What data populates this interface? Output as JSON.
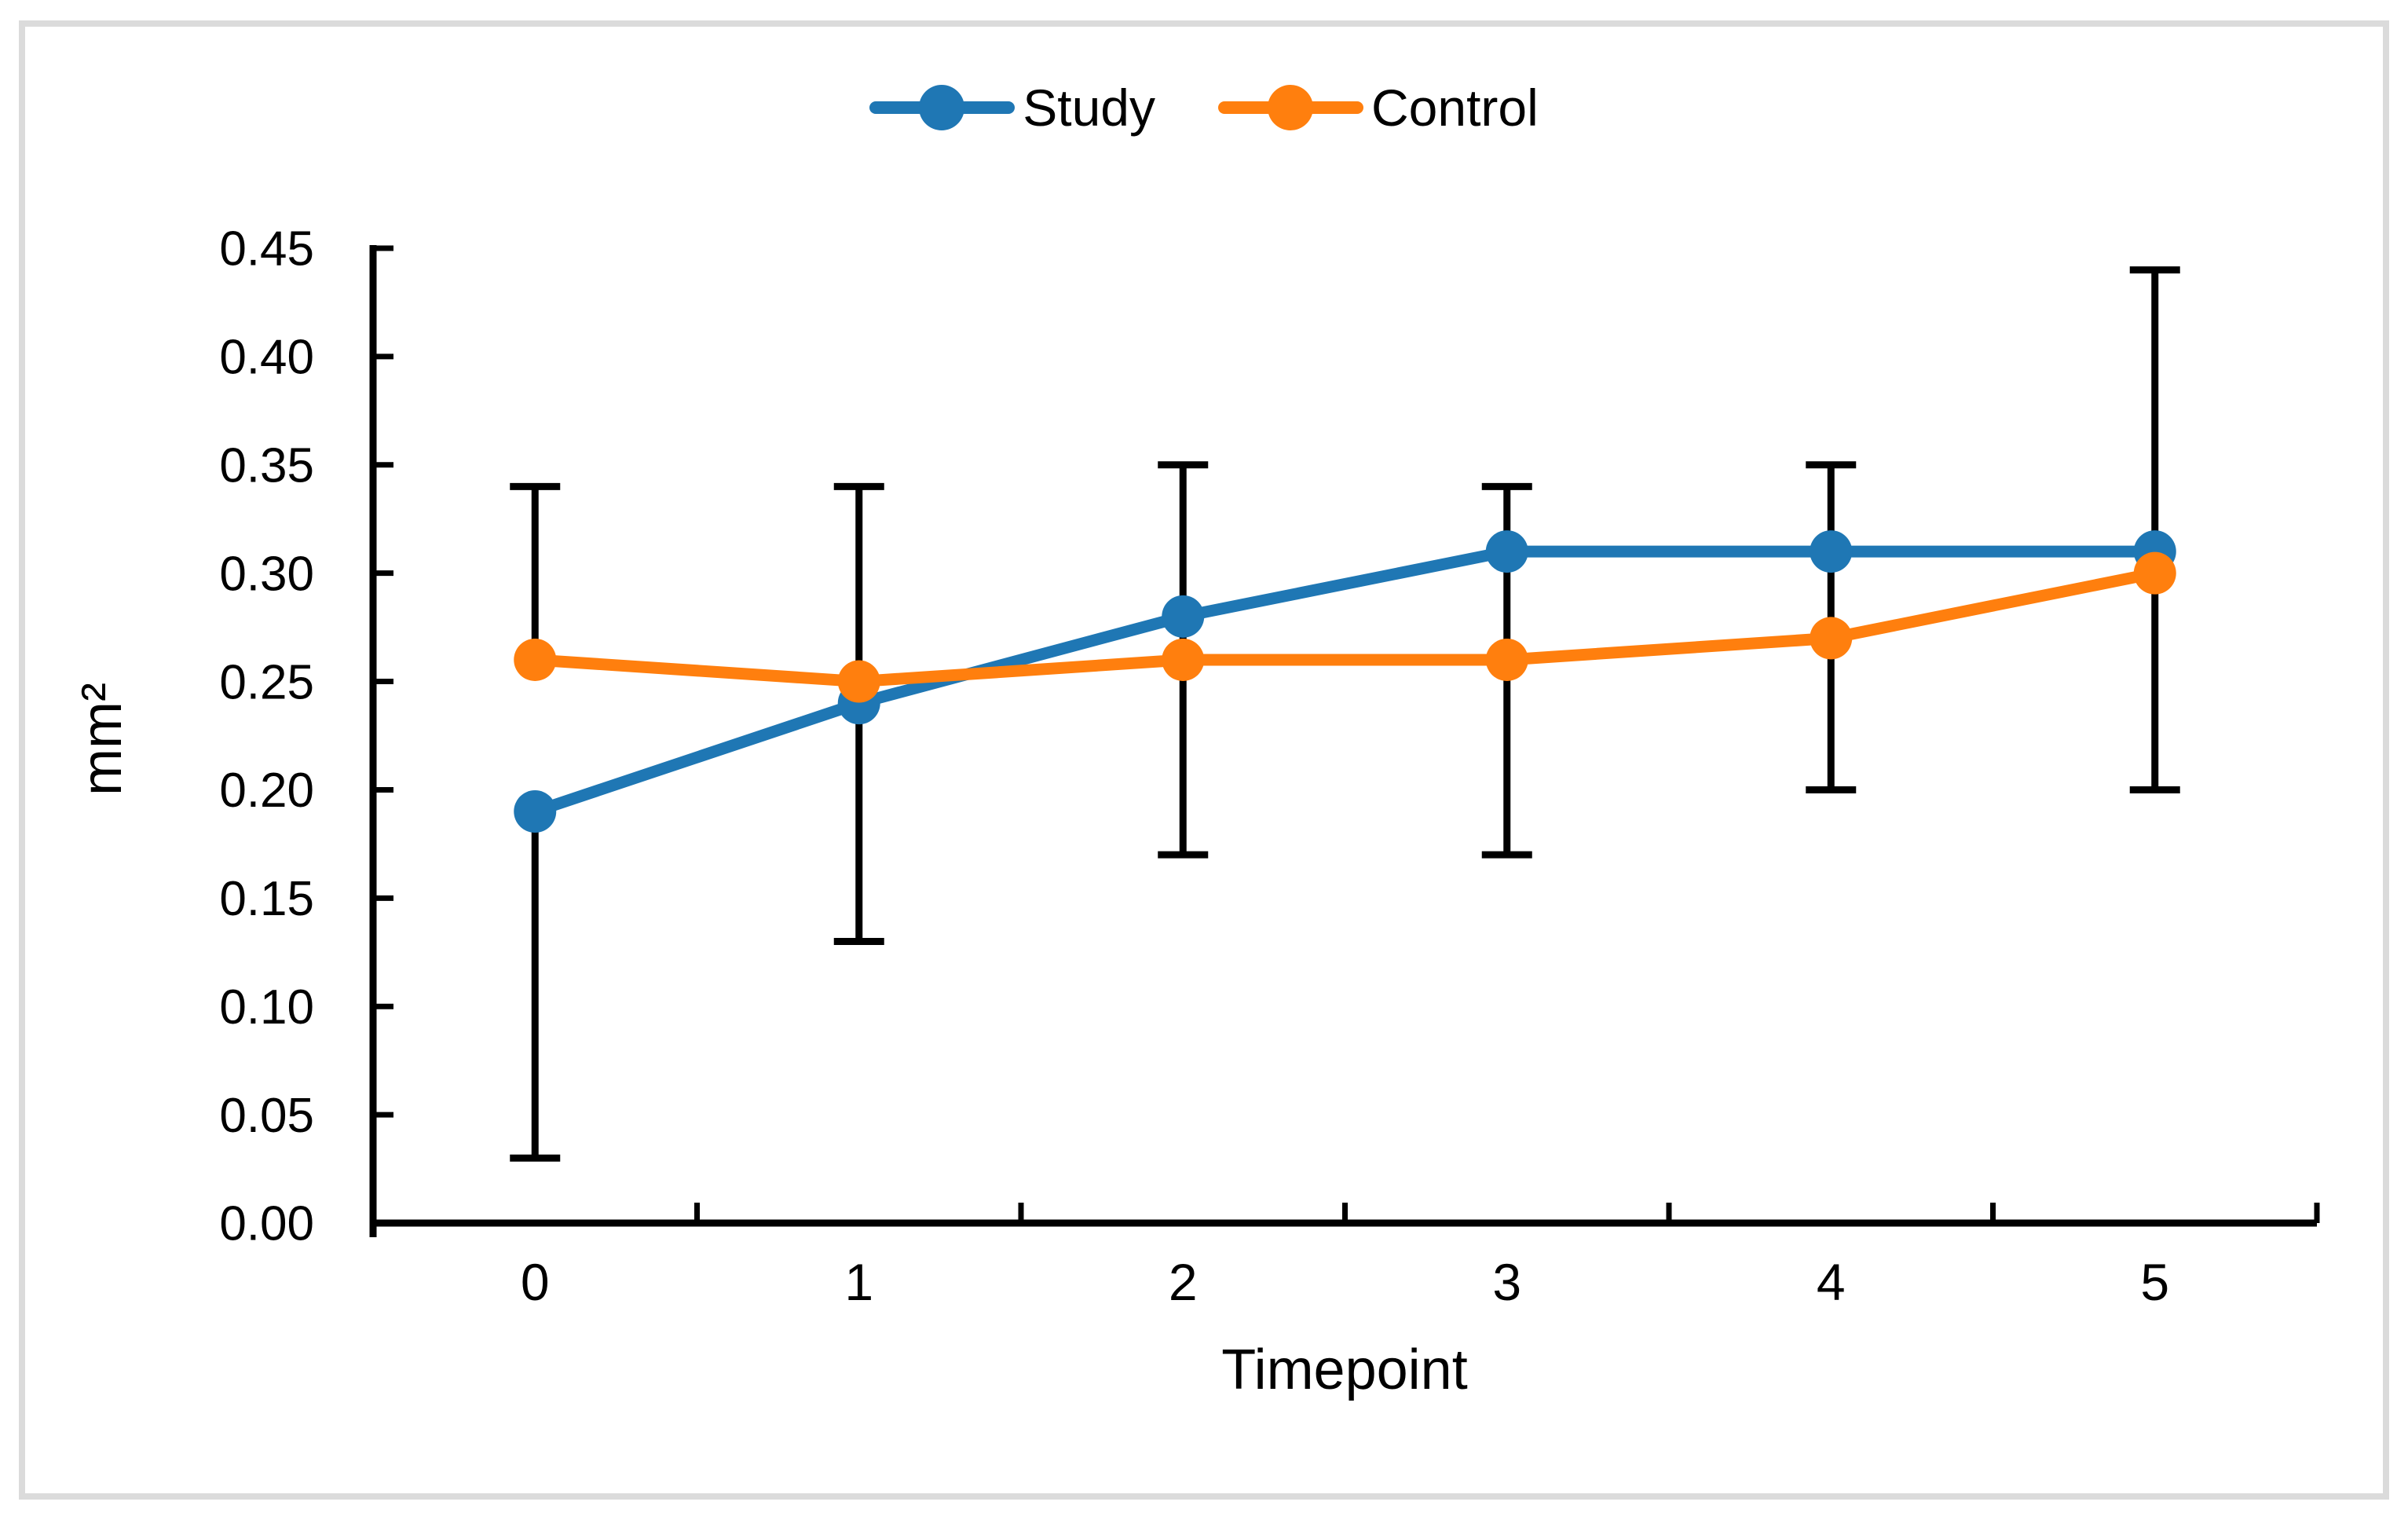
{
  "figure": {
    "background_color": "#FFFFFF",
    "frame_color": "#DBDBDB"
  },
  "legend": {
    "position": "top-center",
    "items": [
      {
        "label": "Study",
        "color": "#1F77B4",
        "marker": "circle-on-line"
      },
      {
        "label": "Control",
        "color": "#FF7F0E",
        "marker": "circle-on-line"
      }
    ]
  },
  "axes": {
    "x": {
      "title": "Timepoint",
      "tick_labels": [
        "0",
        "1",
        "2",
        "3",
        "4",
        "5"
      ],
      "tick_style": "between-categories-inside"
    },
    "y": {
      "title": "mm²",
      "min": 0.0,
      "max": 0.45,
      "step": 0.05,
      "tick_labels": [
        "0.00",
        "0.05",
        "0.10",
        "0.15",
        "0.20",
        "0.25",
        "0.30",
        "0.35",
        "0.40",
        "0.45"
      ],
      "tick_style": "inside"
    }
  },
  "chart_data": {
    "type": "line",
    "title": "",
    "xlabel": "Timepoint",
    "ylabel": "mm²",
    "x": [
      0,
      1,
      2,
      3,
      4,
      5
    ],
    "ylim": [
      0,
      0.45
    ],
    "grid": false,
    "legend_position": "top-center",
    "series": [
      {
        "name": "Study",
        "color": "#1F77B4",
        "values": [
          0.19,
          0.24,
          0.28,
          0.31,
          0.31,
          0.31
        ]
      },
      {
        "name": "Control",
        "color": "#FF7F0E",
        "values": [
          0.26,
          0.25,
          0.26,
          0.26,
          0.27,
          0.3
        ]
      }
    ],
    "error_bars": {
      "color": "#000000",
      "per_point": [
        {
          "t": 0,
          "hi": 0.34,
          "lo": 0.03,
          "segments": [
            [
              0.34,
              0.26
            ],
            [
              0.19,
              0.03
            ]
          ]
        },
        {
          "t": 1,
          "hi": 0.34,
          "lo": 0.13,
          "segments": [
            [
              0.34,
              0.13
            ]
          ]
        },
        {
          "t": 2,
          "hi": 0.35,
          "lo": 0.17,
          "segments": [
            [
              0.35,
              0.17
            ]
          ]
        },
        {
          "t": 3,
          "hi": 0.34,
          "lo": 0.17,
          "segments": [
            [
              0.34,
              0.17
            ]
          ]
        },
        {
          "t": 4,
          "hi": 0.35,
          "lo": 0.2,
          "segments": [
            [
              0.35,
              0.2
            ]
          ]
        },
        {
          "t": 5,
          "hi": 0.44,
          "lo": 0.2,
          "segments": [
            [
              0.44,
              0.2
            ]
          ]
        }
      ]
    }
  }
}
